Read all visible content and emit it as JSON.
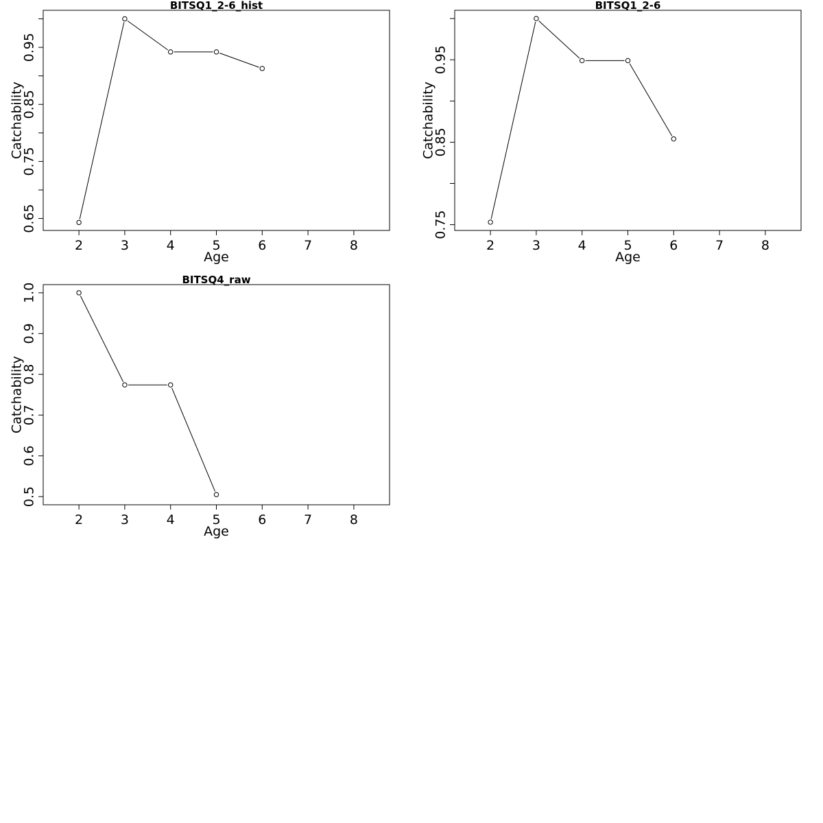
{
  "chart_data": [
    {
      "type": "line",
      "title": "BITSQ1_2-6_hist",
      "xlabel": "Age",
      "ylabel": "Catchability",
      "x": [
        2,
        3,
        4,
        5,
        6
      ],
      "values": [
        0.643,
        1.0,
        0.942,
        0.942,
        0.913
      ],
      "xlim": [
        1.22,
        8.78
      ],
      "ylim": [
        0.629,
        1.015
      ],
      "xticks": [
        2,
        3,
        4,
        5,
        6,
        7,
        8
      ],
      "yticks_labeled": [
        0.65,
        0.75,
        0.85,
        0.95
      ],
      "yticks_minor": [
        0.7,
        0.8,
        0.9,
        1.0
      ],
      "grid": false
    },
    {
      "type": "line",
      "title": "BITSQ1_2-6",
      "xlabel": "Age",
      "ylabel": "Catchability",
      "x": [
        2,
        3,
        4,
        5,
        6
      ],
      "values": [
        0.753,
        1.0,
        0.949,
        0.949,
        0.854
      ],
      "xlim": [
        1.22,
        8.78
      ],
      "ylim": [
        0.743,
        1.01
      ],
      "xticks": [
        2,
        3,
        4,
        5,
        6,
        7,
        8
      ],
      "yticks_labeled": [
        0.75,
        0.85,
        0.95
      ],
      "yticks_minor": [
        0.8,
        0.9,
        1.0
      ],
      "grid": false
    },
    {
      "type": "line",
      "title": "BITSQ4_raw",
      "xlabel": "Age",
      "ylabel": "Catchability",
      "x": [
        2,
        3,
        4,
        5
      ],
      "values": [
        1.0,
        0.774,
        0.774,
        0.505
      ],
      "xlim": [
        1.22,
        8.78
      ],
      "ylim": [
        0.48,
        1.02
      ],
      "xticks": [
        2,
        3,
        4,
        5,
        6,
        7,
        8
      ],
      "yticks_labeled": [
        0.5,
        0.6,
        0.7,
        0.8,
        0.9,
        1.0
      ],
      "yticks_minor": [],
      "ytick_labels": [
        "0.5",
        "0.6",
        "0.7",
        "0.8",
        "0.9",
        "1.0"
      ],
      "grid": false
    }
  ]
}
